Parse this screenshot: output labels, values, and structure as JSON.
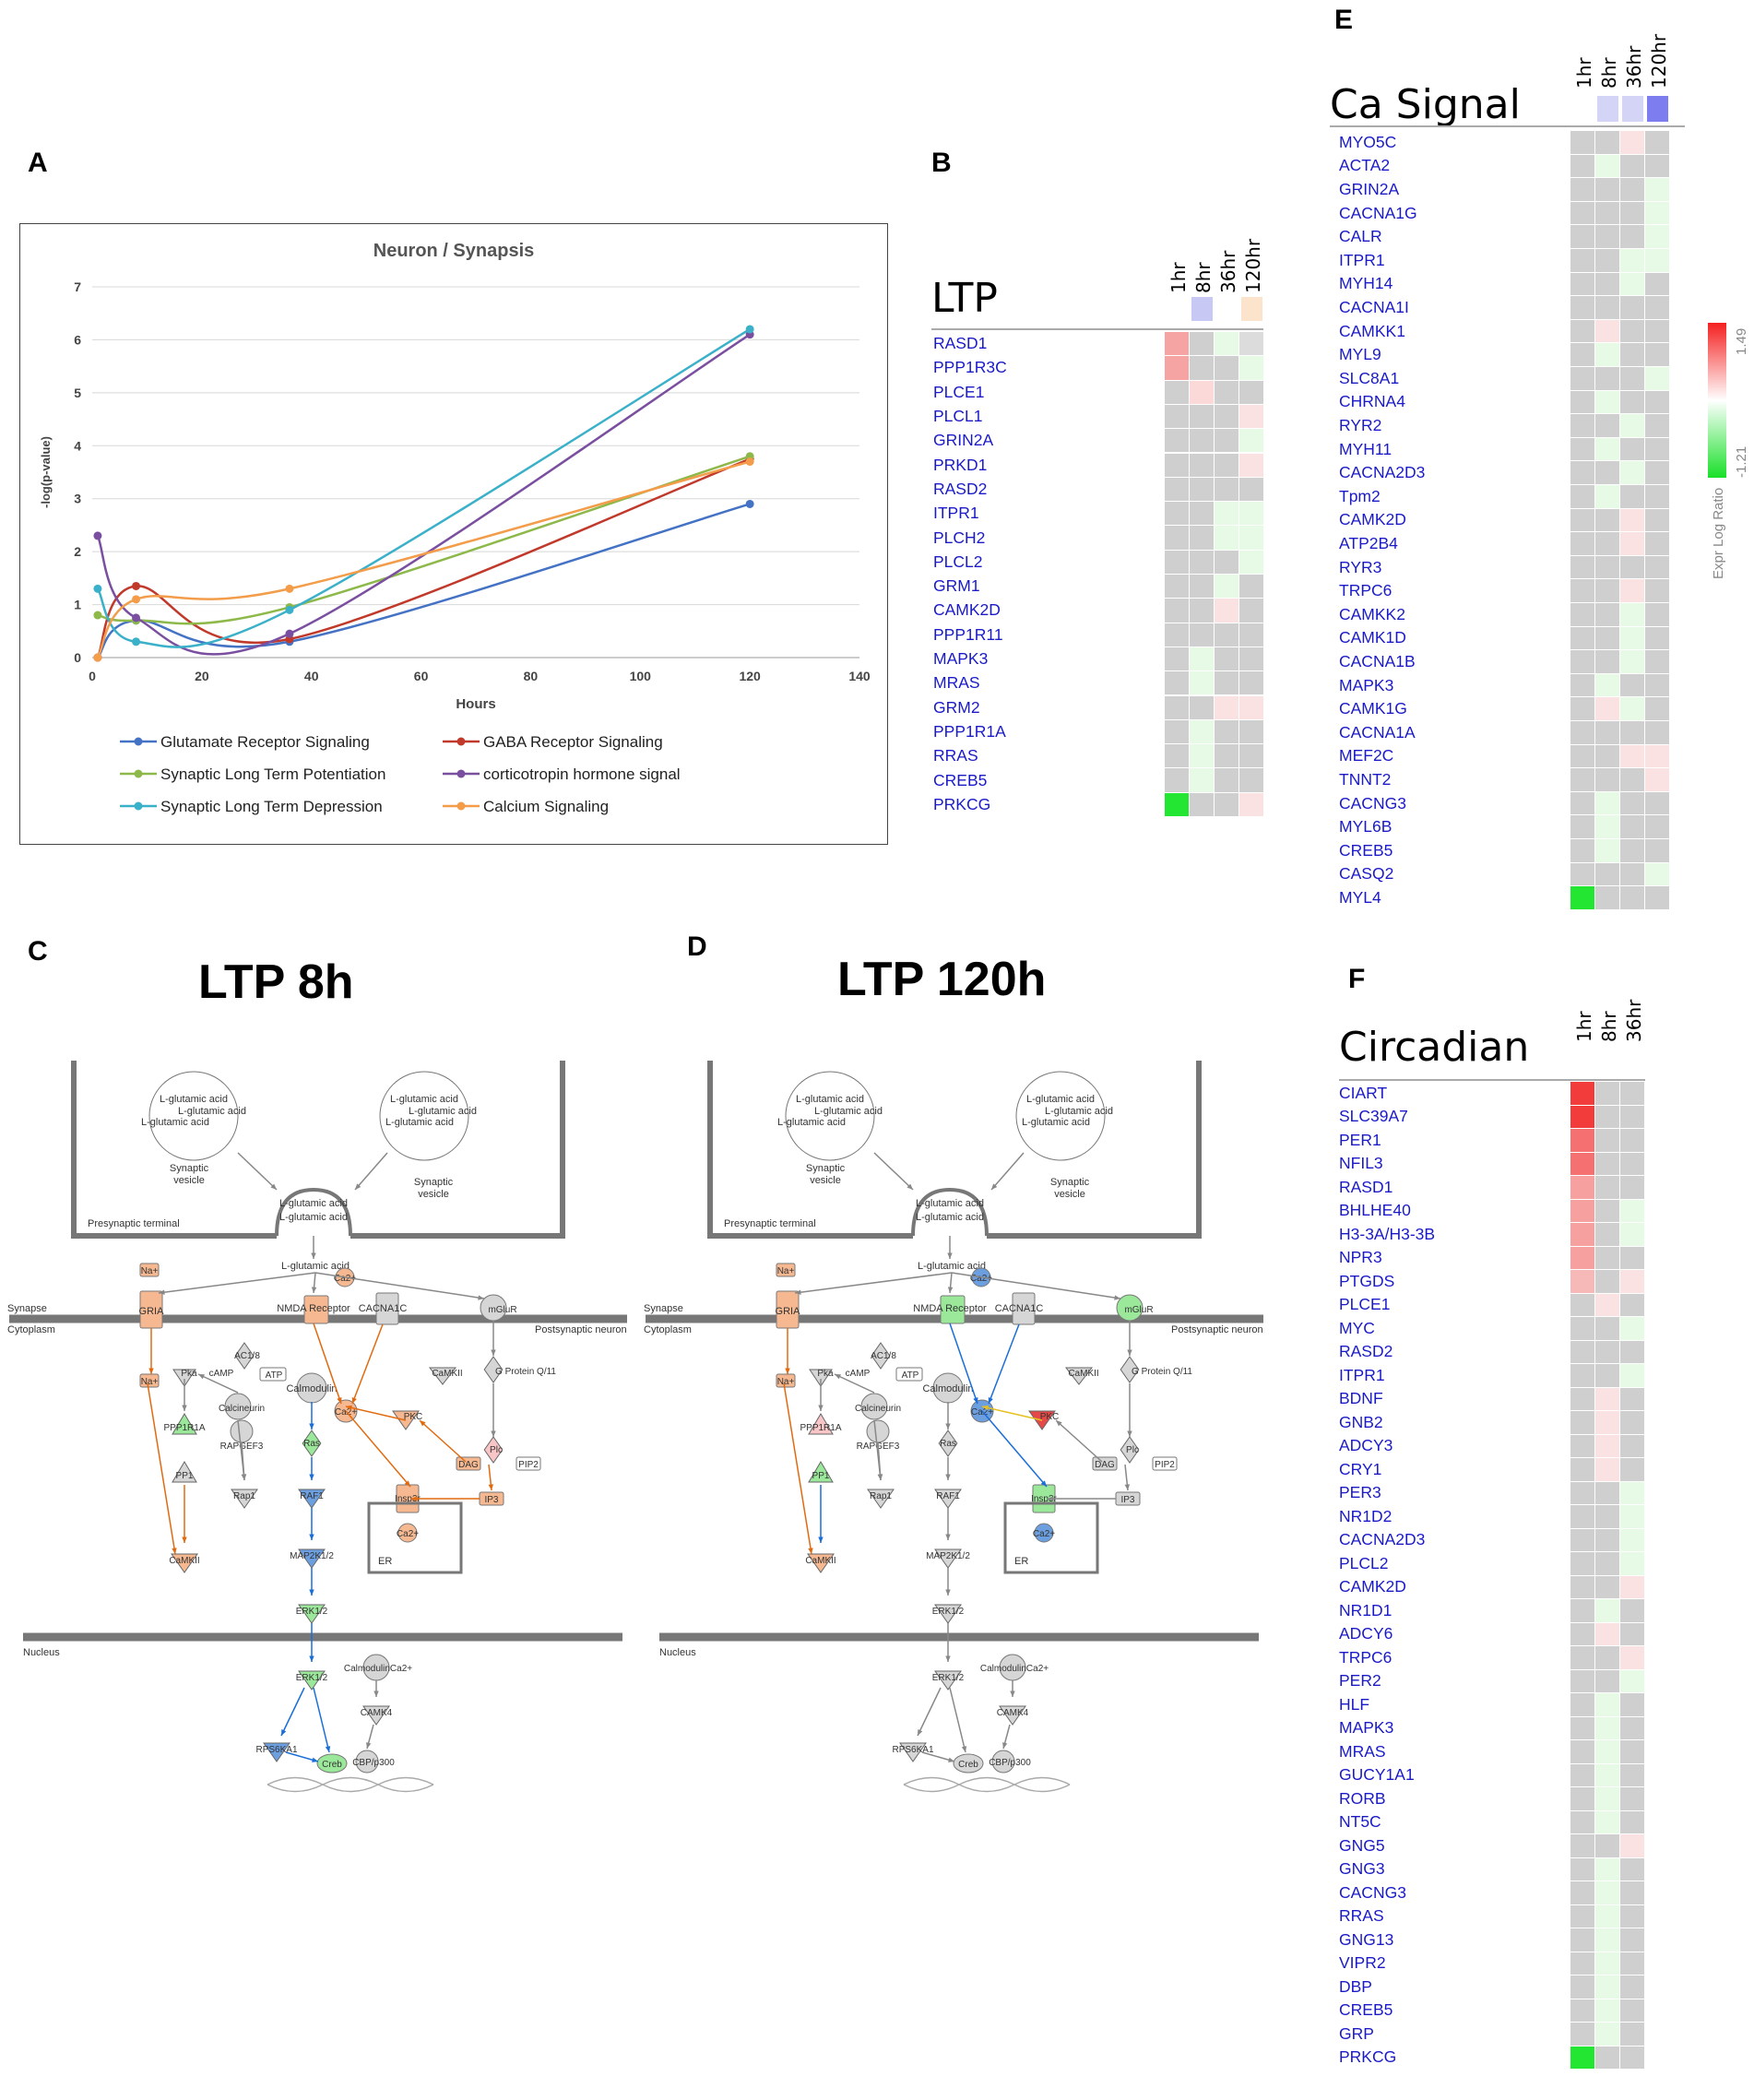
{
  "panels": {
    "A": "A",
    "B": "B",
    "C": "C",
    "D": "D",
    "E": "E",
    "F": "F"
  },
  "chart_data": {
    "type": "line",
    "title": "Neuron / Synapsis",
    "xlabel": "Hours",
    "ylabel": "-log(p-value)",
    "xlim": [
      0,
      140
    ],
    "ylim": [
      0,
      7
    ],
    "xticks": [
      0,
      20,
      40,
      60,
      80,
      100,
      120,
      140
    ],
    "yticks": [
      0,
      1,
      2,
      3,
      4,
      5,
      6,
      7
    ],
    "grid": true,
    "legend_position": "bottom",
    "x": [
      1,
      8,
      36,
      120
    ],
    "series": [
      {
        "name": "Glutamate Receptor Signaling",
        "color": "#4472c4",
        "values": [
          0,
          0.7,
          0.3,
          2.9
        ]
      },
      {
        "name": "GABA Receptor Signaling",
        "color": "#c0392b",
        "values": [
          0,
          1.35,
          0.35,
          3.75
        ]
      },
      {
        "name": "Synaptic Long Term Potentiation",
        "color": "#8db84a",
        "values": [
          0.8,
          0.7,
          0.95,
          3.8
        ]
      },
      {
        "name": "corticotropin hormone signal",
        "color": "#7b4fa0",
        "values": [
          2.3,
          0.75,
          0.45,
          6.1
        ]
      },
      {
        "name": "Synaptic Long Term Depression",
        "color": "#3bb0c9",
        "values": [
          1.3,
          0.3,
          0.9,
          6.2
        ]
      },
      {
        "name": "Calcium Signaling",
        "color": "#f39c4a",
        "values": [
          0,
          1.1,
          1.3,
          3.7
        ]
      }
    ]
  },
  "heatmap_B": {
    "title": "LTP",
    "columns": [
      "1hr",
      "8hr",
      "36hr",
      "120hr"
    ],
    "genes": [
      "RASD1",
      "PPP1R3C",
      "PLCE1",
      "PLCL1",
      "GRIN2A",
      "PRKD1",
      "RASD2",
      "ITPR1",
      "PLCH2",
      "PLCL2",
      "GRM1",
      "CAMK2D",
      "PPP1R11",
      "MAPK3",
      "MRAS",
      "GRM2",
      "PPP1R1A",
      "RRAS",
      "CREB5",
      "PRKCG"
    ],
    "header_colors": [
      "",
      "#c8c8f4",
      "",
      "#fbe3cc"
    ],
    "cells": [
      [
        "#f5a3a3",
        "#cfcfcf",
        "#e6fae6",
        "#dcdcdc"
      ],
      [
        "#f5a3a3",
        "#cfcfcf",
        "#cfcfcf",
        "#e6fae6"
      ],
      [
        "#cfcfcf",
        "#fbd9d9",
        "#cfcfcf",
        "#cfcfcf"
      ],
      [
        "#cfcfcf",
        "#cfcfcf",
        "#cfcfcf",
        "#fbe2e2"
      ],
      [
        "#cfcfcf",
        "#cfcfcf",
        "#cfcfcf",
        "#e6fae6"
      ],
      [
        "#cfcfcf",
        "#cfcfcf",
        "#cfcfcf",
        "#fbe2e2"
      ],
      [
        "#cfcfcf",
        "#cfcfcf",
        "#cfcfcf",
        "#cfcfcf"
      ],
      [
        "#cfcfcf",
        "#cfcfcf",
        "#e6fae6",
        "#e6fae6"
      ],
      [
        "#cfcfcf",
        "#cfcfcf",
        "#e6fae6",
        "#e6fae6"
      ],
      [
        "#cfcfcf",
        "#cfcfcf",
        "#cfcfcf",
        "#e6fae6"
      ],
      [
        "#cfcfcf",
        "#cfcfcf",
        "#e6fae6",
        "#cfcfcf"
      ],
      [
        "#cfcfcf",
        "#cfcfcf",
        "#fbe2e2",
        "#cfcfcf"
      ],
      [
        "#cfcfcf",
        "#cfcfcf",
        "#cfcfcf",
        "#cfcfcf"
      ],
      [
        "#cfcfcf",
        "#e6fae6",
        "#cfcfcf",
        "#cfcfcf"
      ],
      [
        "#cfcfcf",
        "#e6fae6",
        "#cfcfcf",
        "#cfcfcf"
      ],
      [
        "#cfcfcf",
        "#cfcfcf",
        "#fbe2e2",
        "#fbe2e2"
      ],
      [
        "#cfcfcf",
        "#e6fae6",
        "#cfcfcf",
        "#cfcfcf"
      ],
      [
        "#cfcfcf",
        "#e6fae6",
        "#cfcfcf",
        "#cfcfcf"
      ],
      [
        "#cfcfcf",
        "#e6fae6",
        "#cfcfcf",
        "#cfcfcf"
      ],
      [
        "#22e632",
        "#cfcfcf",
        "#cfcfcf",
        "#fbe2e2"
      ]
    ]
  },
  "heatmap_E": {
    "title": "Ca Signal",
    "columns": [
      "1hr",
      "8hr",
      "36hr",
      "120hr"
    ],
    "genes": [
      "MYO5C",
      "ACTA2",
      "GRIN2A",
      "CACNA1G",
      "CALR",
      "ITPR1",
      "MYH14",
      "CACNA1I",
      "CAMKK1",
      "MYL9",
      "SLC8A1",
      "CHRNA4",
      "RYR2",
      "MYH11",
      "CACNA2D3",
      "Tpm2",
      "CAMK2D",
      "ATP2B4",
      "RYR3",
      "TRPC6",
      "CAMKK2",
      "CAMK1D",
      "CACNA1B",
      "MAPK3",
      "CAMK1G",
      "CACNA1A",
      "MEF2C",
      "TNNT2",
      "CACNG3",
      "MYL6B",
      "CREB5",
      "CASQ2",
      "MYL4"
    ],
    "header_colors": [
      "",
      "#d4d4f6",
      "#d4d4f6",
      "#7d7df0"
    ],
    "cells": [
      [
        "#cfcfcf",
        "#cfcfcf",
        "#fbe2e2",
        "#cfcfcf"
      ],
      [
        "#cfcfcf",
        "#e6fae6",
        "#cfcfcf",
        "#cfcfcf"
      ],
      [
        "#cfcfcf",
        "#cfcfcf",
        "#cfcfcf",
        "#e6fae6"
      ],
      [
        "#cfcfcf",
        "#cfcfcf",
        "#cfcfcf",
        "#e6fae6"
      ],
      [
        "#cfcfcf",
        "#cfcfcf",
        "#cfcfcf",
        "#e6fae6"
      ],
      [
        "#cfcfcf",
        "#cfcfcf",
        "#e6fae6",
        "#e6fae6"
      ],
      [
        "#cfcfcf",
        "#cfcfcf",
        "#e6fae6",
        "#cfcfcf"
      ],
      [
        "#cfcfcf",
        "#cfcfcf",
        "#cfcfcf",
        "#cfcfcf"
      ],
      [
        "#cfcfcf",
        "#fbe2e2",
        "#cfcfcf",
        "#cfcfcf"
      ],
      [
        "#cfcfcf",
        "#e6fae6",
        "#cfcfcf",
        "#cfcfcf"
      ],
      [
        "#cfcfcf",
        "#cfcfcf",
        "#cfcfcf",
        "#e6fae6"
      ],
      [
        "#cfcfcf",
        "#e6fae6",
        "#cfcfcf",
        "#cfcfcf"
      ],
      [
        "#cfcfcf",
        "#cfcfcf",
        "#e6fae6",
        "#cfcfcf"
      ],
      [
        "#cfcfcf",
        "#e6fae6",
        "#cfcfcf",
        "#cfcfcf"
      ],
      [
        "#cfcfcf",
        "#cfcfcf",
        "#e6fae6",
        "#cfcfcf"
      ],
      [
        "#cfcfcf",
        "#e6fae6",
        "#cfcfcf",
        "#cfcfcf"
      ],
      [
        "#cfcfcf",
        "#cfcfcf",
        "#fbe2e2",
        "#cfcfcf"
      ],
      [
        "#cfcfcf",
        "#cfcfcf",
        "#fbe2e2",
        "#cfcfcf"
      ],
      [
        "#cfcfcf",
        "#cfcfcf",
        "#cfcfcf",
        "#cfcfcf"
      ],
      [
        "#cfcfcf",
        "#cfcfcf",
        "#fbe2e2",
        "#cfcfcf"
      ],
      [
        "#cfcfcf",
        "#cfcfcf",
        "#e6fae6",
        "#cfcfcf"
      ],
      [
        "#cfcfcf",
        "#cfcfcf",
        "#e6fae6",
        "#cfcfcf"
      ],
      [
        "#cfcfcf",
        "#cfcfcf",
        "#e6fae6",
        "#cfcfcf"
      ],
      [
        "#cfcfcf",
        "#e6fae6",
        "#cfcfcf",
        "#cfcfcf"
      ],
      [
        "#cfcfcf",
        "#fbe2e2",
        "#e6fae6",
        "#cfcfcf"
      ],
      [
        "#cfcfcf",
        "#cfcfcf",
        "#cfcfcf",
        "#cfcfcf"
      ],
      [
        "#cfcfcf",
        "#cfcfcf",
        "#fbe2e2",
        "#fbe2e2"
      ],
      [
        "#cfcfcf",
        "#cfcfcf",
        "#cfcfcf",
        "#fbe2e2"
      ],
      [
        "#cfcfcf",
        "#e6fae6",
        "#cfcfcf",
        "#cfcfcf"
      ],
      [
        "#cfcfcf",
        "#e6fae6",
        "#cfcfcf",
        "#cfcfcf"
      ],
      [
        "#cfcfcf",
        "#e6fae6",
        "#cfcfcf",
        "#cfcfcf"
      ],
      [
        "#cfcfcf",
        "#cfcfcf",
        "#cfcfcf",
        "#e6fae6"
      ],
      [
        "#22e632",
        "#cfcfcf",
        "#cfcfcf",
        "#cfcfcf"
      ]
    ]
  },
  "heatmap_F": {
    "title": "Circadian",
    "columns": [
      "1hr",
      "8hr",
      "36hr"
    ],
    "genes": [
      "CIART",
      "SLC39A7",
      "PER1",
      "NFIL3",
      "RASD1",
      "BHLHE40",
      "H3-3A/H3-3B",
      "NPR3",
      "PTGDS",
      "PLCE1",
      "MYC",
      "RASD2",
      "ITPR1",
      "BDNF",
      "GNB2",
      "ADCY3",
      "CRY1",
      "PER3",
      "NR1D2",
      "CACNA2D3",
      "PLCL2",
      "CAMK2D",
      "NR1D1",
      "ADCY6",
      "TRPC6",
      "PER2",
      "HLF",
      "MAPK3",
      "MRAS",
      "GUCY1A1",
      "RORB",
      "NT5C",
      "GNG5",
      "GNG3",
      "CACNG3",
      "RRAS",
      "GNG13",
      "VIPR2",
      "DBP",
      "CREB5",
      "GRP",
      "PRKCG"
    ],
    "cells": [
      [
        "#f23b3b",
        "#cfcfcf",
        "#cfcfcf"
      ],
      [
        "#f23b3b",
        "#cfcfcf",
        "#cfcfcf"
      ],
      [
        "#f57070",
        "#cfcfcf",
        "#cfcfcf"
      ],
      [
        "#f57070",
        "#cfcfcf",
        "#cfcfcf"
      ],
      [
        "#f7a0a0",
        "#cfcfcf",
        "#cfcfcf"
      ],
      [
        "#f7a0a0",
        "#cfcfcf",
        "#e6fae6"
      ],
      [
        "#f7a0a0",
        "#cfcfcf",
        "#e6fae6"
      ],
      [
        "#f7a0a0",
        "#cfcfcf",
        "#cfcfcf"
      ],
      [
        "#f7b8b8",
        "#cfcfcf",
        "#fbe2e2"
      ],
      [
        "#cfcfcf",
        "#fbe2e2",
        "#cfcfcf"
      ],
      [
        "#cfcfcf",
        "#cfcfcf",
        "#e6fae6"
      ],
      [
        "#cfcfcf",
        "#cfcfcf",
        "#cfcfcf"
      ],
      [
        "#cfcfcf",
        "#cfcfcf",
        "#e6fae6"
      ],
      [
        "#cfcfcf",
        "#fbe2e2",
        "#cfcfcf"
      ],
      [
        "#cfcfcf",
        "#fbe2e2",
        "#cfcfcf"
      ],
      [
        "#cfcfcf",
        "#fbe2e2",
        "#cfcfcf"
      ],
      [
        "#cfcfcf",
        "#fbe2e2",
        "#cfcfcf"
      ],
      [
        "#cfcfcf",
        "#cfcfcf",
        "#e6fae6"
      ],
      [
        "#cfcfcf",
        "#cfcfcf",
        "#e6fae6"
      ],
      [
        "#cfcfcf",
        "#cfcfcf",
        "#e6fae6"
      ],
      [
        "#cfcfcf",
        "#cfcfcf",
        "#e6fae6"
      ],
      [
        "#cfcfcf",
        "#cfcfcf",
        "#fbe2e2"
      ],
      [
        "#cfcfcf",
        "#e6fae6",
        "#cfcfcf"
      ],
      [
        "#cfcfcf",
        "#fbe2e2",
        "#cfcfcf"
      ],
      [
        "#cfcfcf",
        "#cfcfcf",
        "#fbe2e2"
      ],
      [
        "#cfcfcf",
        "#cfcfcf",
        "#e6fae6"
      ],
      [
        "#cfcfcf",
        "#e6fae6",
        "#cfcfcf"
      ],
      [
        "#cfcfcf",
        "#e6fae6",
        "#cfcfcf"
      ],
      [
        "#cfcfcf",
        "#e6fae6",
        "#cfcfcf"
      ],
      [
        "#cfcfcf",
        "#e6fae6",
        "#cfcfcf"
      ],
      [
        "#cfcfcf",
        "#e6fae6",
        "#cfcfcf"
      ],
      [
        "#cfcfcf",
        "#e6fae6",
        "#cfcfcf"
      ],
      [
        "#cfcfcf",
        "#cfcfcf",
        "#fbe2e2"
      ],
      [
        "#cfcfcf",
        "#e6fae6",
        "#cfcfcf"
      ],
      [
        "#cfcfcf",
        "#e6fae6",
        "#cfcfcf"
      ],
      [
        "#cfcfcf",
        "#e6fae6",
        "#cfcfcf"
      ],
      [
        "#cfcfcf",
        "#e6fae6",
        "#cfcfcf"
      ],
      [
        "#cfcfcf",
        "#e6fae6",
        "#cfcfcf"
      ],
      [
        "#cfcfcf",
        "#e6fae6",
        "#cfcfcf"
      ],
      [
        "#cfcfcf",
        "#e6fae6",
        "#cfcfcf"
      ],
      [
        "#cfcfcf",
        "#e6fae6",
        "#cfcfcf"
      ],
      [
        "#22e632",
        "#cfcfcf",
        "#cfcfcf"
      ]
    ]
  },
  "colorbar": {
    "max_label": "1.49",
    "min_label": "-1.21",
    "title": "Expr Log Ratio",
    "colors": [
      "#f52020",
      "#ffffff",
      "#18e028"
    ]
  },
  "pathways": {
    "titles": [
      "LTP 8h",
      "LTP 120h"
    ],
    "labels": {
      "glu": "L-glutamic acid",
      "vesicle": "Synaptic vesicle",
      "synaptic": "Synaptic",
      "vesicle2": "vesicle",
      "presyn": "Presynaptic terminal",
      "synapse": "Synapse",
      "cytoplasm": "Cytoplasm",
      "postsyn": "Postsynaptic neuron",
      "nucleus": "Nucleus",
      "na": "Na+",
      "gria": "GRIA",
      "nmda": "NMDA Receptor",
      "ca": "Ca2+",
      "cacna1c": "CACNA1C",
      "mglur": "mGluR",
      "ac18": "AC1/8",
      "camkii": "CaMKII",
      "gprot": "G Protein Q/11",
      "pka": "Pka",
      "camp": "cAMP",
      "atp": "ATP",
      "calmodulin": "Calmodulin",
      "calcineurin": "Calcineurin",
      "ppp1r1a": "PPP1R1A",
      "rapgef3": "RAPGEF3",
      "ras": "Ras",
      "pkc": "PKC",
      "plc": "Plc",
      "dag": "DAG",
      "pip2": "PIP2",
      "ip3": "IP3",
      "pp1": "PP1",
      "rap1": "Rap1",
      "raf1": "RAF1",
      "insp3r": "Insp3r",
      "map2k": "MAP2K1/2",
      "er": "ER",
      "erk": "ERK1/2",
      "calmca": "CalmodulinCa2+",
      "camk4": "CAMK4",
      "rps6ka1": "RPS6KA1",
      "creb": "Creb",
      "cbp": "CBP/p300"
    }
  }
}
